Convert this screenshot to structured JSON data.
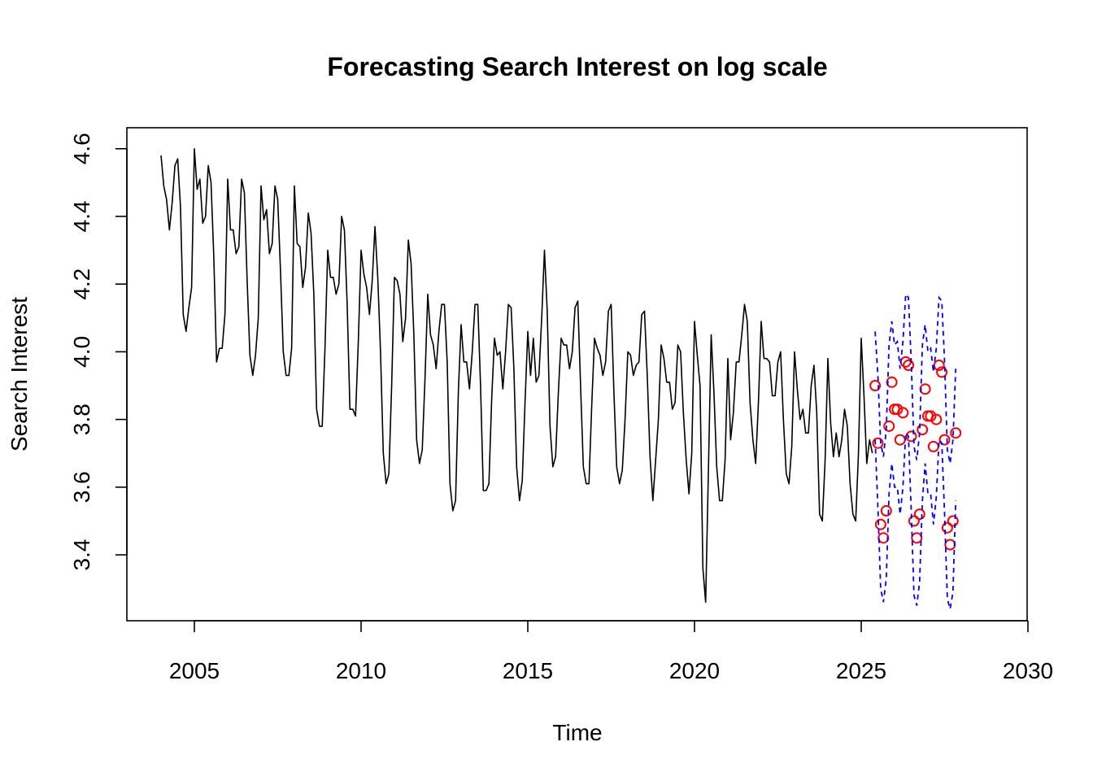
{
  "chart_data": {
    "type": "line",
    "title": "Forecasting Search Interest on log scale",
    "xlabel": "Time",
    "ylabel": "Search Interest",
    "xlim": [
      2003.6,
      2030
    ],
    "ylim": [
      3.2,
      4.63
    ],
    "x_ticks": [
      2005,
      2010,
      2015,
      2020,
      2025,
      2030
    ],
    "x_tick_labels": [
      "2005",
      "2010",
      "2015",
      "2020",
      "2025",
      "2030"
    ],
    "y_ticks": [
      3.4,
      3.6,
      3.8,
      4.0,
      4.2,
      4.4,
      4.6
    ],
    "y_tick_labels": [
      "3.4",
      "3.6",
      "3.8",
      "4.0",
      "4.2",
      "4.4",
      "4.6"
    ],
    "grid": false,
    "legend": "none",
    "colors": {
      "history": "#000000",
      "forecast": "#ff0000",
      "interval": "#0000ff"
    },
    "series": [
      {
        "role": "history",
        "start": "2004-01",
        "frequency": "monthly",
        "style": "solid line",
        "values": [
          4.58,
          4.49,
          4.45,
          4.36,
          4.44,
          4.55,
          4.57,
          4.43,
          4.11,
          4.06,
          4.13,
          4.19,
          4.6,
          4.48,
          4.51,
          4.38,
          4.4,
          4.55,
          4.5,
          4.28,
          3.97,
          4.01,
          4.01,
          4.11,
          4.51,
          4.36,
          4.36,
          4.29,
          4.31,
          4.51,
          4.47,
          4.21,
          3.99,
          3.93,
          3.99,
          4.1,
          4.49,
          4.39,
          4.42,
          4.29,
          4.32,
          4.49,
          4.45,
          4.24,
          4.0,
          3.93,
          3.93,
          4.01,
          4.49,
          4.32,
          4.31,
          4.19,
          4.25,
          4.41,
          4.35,
          4.17,
          3.83,
          3.78,
          3.78,
          4.01,
          4.3,
          4.22,
          4.22,
          4.17,
          4.2,
          4.4,
          4.36,
          4.14,
          3.83,
          3.83,
          3.81,
          4.03,
          4.3,
          4.23,
          4.19,
          4.11,
          4.21,
          4.37,
          4.22,
          4.0,
          3.7,
          3.61,
          3.64,
          3.9,
          4.22,
          4.21,
          4.17,
          4.03,
          4.1,
          4.33,
          4.26,
          4.05,
          3.74,
          3.67,
          3.71,
          3.92,
          4.17,
          4.05,
          4.02,
          3.95,
          4.06,
          4.14,
          4.14,
          3.97,
          3.61,
          3.53,
          3.56,
          3.88,
          4.08,
          3.97,
          3.97,
          3.89,
          4.0,
          4.14,
          4.14,
          3.9,
          3.59,
          3.59,
          3.61,
          3.86,
          4.04,
          3.99,
          4.0,
          3.89,
          4.0,
          4.14,
          4.13,
          3.95,
          3.66,
          3.56,
          3.62,
          3.85,
          4.06,
          3.93,
          4.04,
          3.91,
          3.93,
          4.1,
          4.3,
          4.12,
          3.78,
          3.66,
          3.69,
          3.88,
          4.04,
          4.02,
          4.02,
          3.95,
          4.0,
          4.13,
          4.15,
          3.9,
          3.66,
          3.61,
          3.61,
          3.84,
          4.04,
          4.01,
          3.99,
          3.93,
          3.97,
          4.12,
          4.14,
          3.88,
          3.66,
          3.61,
          3.65,
          3.8,
          4.0,
          3.99,
          3.93,
          3.96,
          3.97,
          4.11,
          4.12,
          3.93,
          3.69,
          3.56,
          3.68,
          3.8,
          4.02,
          3.98,
          3.91,
          3.91,
          3.83,
          3.85,
          4.02,
          4.0,
          3.82,
          3.68,
          3.58,
          3.7,
          4.09,
          3.99,
          3.9,
          3.36,
          3.26,
          3.65,
          4.05,
          3.88,
          3.66,
          3.56,
          3.56,
          3.68,
          3.98,
          3.74,
          3.82,
          3.97,
          3.97,
          4.05,
          4.14,
          4.09,
          3.85,
          3.74,
          3.67,
          3.85,
          4.09,
          3.98,
          3.98,
          3.97,
          3.87,
          3.87,
          3.97,
          4.0,
          3.8,
          3.64,
          3.61,
          3.72,
          4.0,
          3.89,
          3.8,
          3.83,
          3.76,
          3.76,
          3.9,
          3.96,
          3.82,
          3.52,
          3.5,
          3.68,
          3.98,
          3.79,
          3.69,
          3.76,
          3.69,
          3.74,
          3.83,
          3.78,
          3.61,
          3.52,
          3.5,
          3.7,
          4.04,
          3.87,
          3.67,
          3.74,
          3.7
        ]
      },
      {
        "role": "forecast",
        "start": "2025-06",
        "frequency": "monthly",
        "style": "open circles",
        "values": [
          3.9,
          3.73,
          3.49,
          3.45,
          3.53,
          3.78,
          3.91,
          3.83,
          3.83,
          3.74,
          3.82,
          3.97,
          3.96,
          3.75,
          3.5,
          3.45,
          3.52,
          3.77,
          3.89,
          3.81,
          3.81,
          3.72,
          3.8,
          3.96,
          3.94,
          3.74,
          3.48,
          3.43,
          3.5,
          3.76
        ]
      },
      {
        "role": "upper-interval",
        "start": "2025-06",
        "frequency": "monthly",
        "style": "dashed line",
        "values": [
          4.06,
          3.93,
          3.73,
          3.69,
          3.77,
          4.02,
          4.09,
          4.02,
          4.03,
          3.95,
          4.03,
          4.17,
          4.16,
          3.97,
          3.72,
          3.68,
          3.76,
          4.02,
          4.08,
          4.0,
          4.01,
          3.94,
          4.01,
          4.16,
          4.15,
          3.97,
          3.71,
          3.67,
          3.74,
          3.95
        ]
      },
      {
        "role": "lower-interval",
        "start": "2025-06",
        "frequency": "monthly",
        "style": "dashed line",
        "values": [
          3.74,
          3.54,
          3.3,
          3.26,
          3.33,
          3.58,
          3.67,
          3.6,
          3.6,
          3.52,
          3.6,
          3.76,
          3.75,
          3.53,
          3.28,
          3.25,
          3.32,
          3.56,
          3.67,
          3.58,
          3.58,
          3.49,
          3.57,
          3.74,
          3.73,
          3.52,
          3.27,
          3.24,
          3.29,
          3.56
        ]
      }
    ]
  }
}
